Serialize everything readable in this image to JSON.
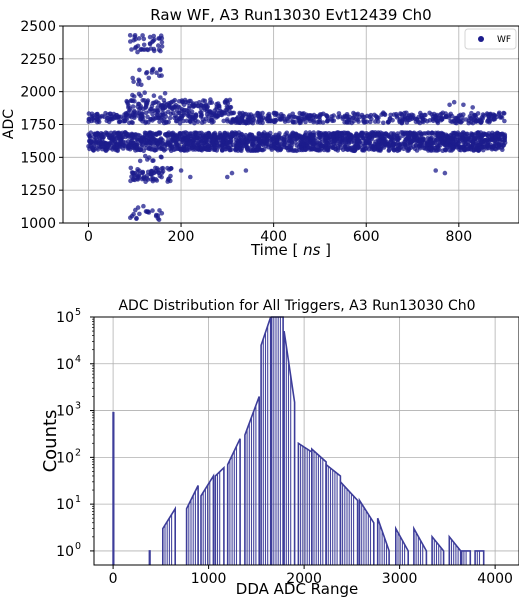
{
  "chart_data": [
    {
      "type": "scatter",
      "title": "Raw WF, A3 Run13030 Evt12439 Ch0",
      "xlabel_prefix": "Time [ ",
      "xlabel_unit": "ns",
      "xlabel_suffix": " ]",
      "ylabel": "ADC",
      "xlim": [
        -55,
        930
      ],
      "ylim": [
        1000,
        2500
      ],
      "xticks": [
        0,
        200,
        400,
        600,
        800
      ],
      "yticks": [
        1000,
        1250,
        1500,
        1750,
        2000,
        2250,
        2500
      ],
      "grid": true,
      "legend_position": "top-right",
      "series": [
        {
          "name": "WF",
          "color": "#1c1c8c",
          "clusters": [
            {
              "x": [
                0,
                900
              ],
              "y": [
                1550,
                1690
              ],
              "n": 1900
            },
            {
              "x": [
                0,
                900
              ],
              "y": [
                1760,
                1840
              ],
              "n": 600
            },
            {
              "x": [
                80,
                310
              ],
              "y": [
                1840,
                1940
              ],
              "n": 150
            },
            {
              "x": [
                90,
                180
              ],
              "y": [
                1310,
                1420
              ],
              "n": 70
            },
            {
              "x": [
                90,
                160
              ],
              "y": [
                1020,
                1130
              ],
              "n": 22
            },
            {
              "x": [
                90,
                160
              ],
              "y": [
                2300,
                2430
              ],
              "n": 40
            },
            {
              "x": [
                95,
                160
              ],
              "y": [
                2050,
                2180
              ],
              "n": 18
            },
            {
              "x": [
                90,
                170
              ],
              "y": [
                1950,
                2000
              ],
              "n": 8
            },
            {
              "x": [
                110,
                160
              ],
              "y": [
                1470,
                1510
              ],
              "n": 8
            }
          ],
          "points": [
            [
              200,
              1400
            ],
            [
              220,
              1350
            ],
            [
              300,
              1350
            ],
            [
              310,
              1380
            ],
            [
              340,
              1400
            ],
            [
              750,
              1400
            ],
            [
              770,
              1380
            ],
            [
              780,
              1900
            ],
            [
              790,
              1920
            ],
            [
              810,
              1900
            ],
            [
              830,
              1880
            ]
          ]
        }
      ]
    },
    {
      "type": "histogram",
      "title": "ADC Distribution for All Triggers, A3 Run13030 Ch0",
      "xlabel": "DDA ADC Range",
      "ylabel": "Counts",
      "yscale": "log",
      "xlim": [
        -200,
        4250
      ],
      "ylim": [
        0.5,
        100000
      ],
      "xticks": [
        0,
        1000,
        2000,
        3000,
        4000
      ],
      "yticks": [
        1,
        10,
        100,
        1000,
        10000,
        100000
      ],
      "ytick_labels": [
        {
          "base": "10",
          "exp": "0"
        },
        {
          "base": "10",
          "exp": "1"
        },
        {
          "base": "10",
          "exp": "2"
        },
        {
          "base": "10",
          "exp": "3"
        },
        {
          "base": "10",
          "exp": "4"
        },
        {
          "base": "10",
          "exp": "5"
        }
      ],
      "grid": true,
      "color": "#3d3d9a",
      "segments": [
        {
          "x0": 0,
          "x1": 6,
          "y0": 900,
          "y1": 900
        },
        {
          "x0": 380,
          "x1": 386,
          "y0": 1,
          "y1": 1
        },
        {
          "x0": 520,
          "x1": 650,
          "y0": 3,
          "y1": 8
        },
        {
          "x0": 770,
          "x1": 890,
          "y0": 8,
          "y1": 25
        },
        {
          "x0": 920,
          "x1": 1050,
          "y0": 15,
          "y1": 40
        },
        {
          "x0": 1070,
          "x1": 1160,
          "y0": 40,
          "y1": 60
        },
        {
          "x0": 1200,
          "x1": 1330,
          "y0": 70,
          "y1": 250
        },
        {
          "x0": 1380,
          "x1": 1530,
          "y0": 300,
          "y1": 2000
        },
        {
          "x0": 1550,
          "x1": 1650,
          "y0": 25000,
          "y1": 100000
        },
        {
          "x0": 1660,
          "x1": 1780,
          "y0": 100000,
          "y1": 100000
        },
        {
          "x0": 1790,
          "x1": 1900,
          "y0": 50000,
          "y1": 1500
        },
        {
          "x0": 1940,
          "x1": 2080,
          "y0": 200,
          "y1": 130
        },
        {
          "x0": 2080,
          "x1": 2230,
          "y0": 150,
          "y1": 80
        },
        {
          "x0": 2230,
          "x1": 2380,
          "y0": 70,
          "y1": 40
        },
        {
          "x0": 2380,
          "x1": 2560,
          "y0": 30,
          "y1": 12
        },
        {
          "x0": 2580,
          "x1": 2730,
          "y0": 12,
          "y1": 4
        },
        {
          "x0": 2770,
          "x1": 2890,
          "y0": 5,
          "y1": 1
        },
        {
          "x0": 2960,
          "x1": 3090,
          "y0": 3,
          "y1": 1
        },
        {
          "x0": 3150,
          "x1": 3280,
          "y0": 3,
          "y1": 1
        },
        {
          "x0": 3340,
          "x1": 3460,
          "y0": 2,
          "y1": 1
        },
        {
          "x0": 3520,
          "x1": 3640,
          "y0": 2,
          "y1": 1
        },
        {
          "x0": 3650,
          "x1": 3740,
          "y0": 1,
          "y1": 1
        },
        {
          "x0": 3790,
          "x1": 3880,
          "y0": 1,
          "y1": 1
        }
      ]
    }
  ]
}
